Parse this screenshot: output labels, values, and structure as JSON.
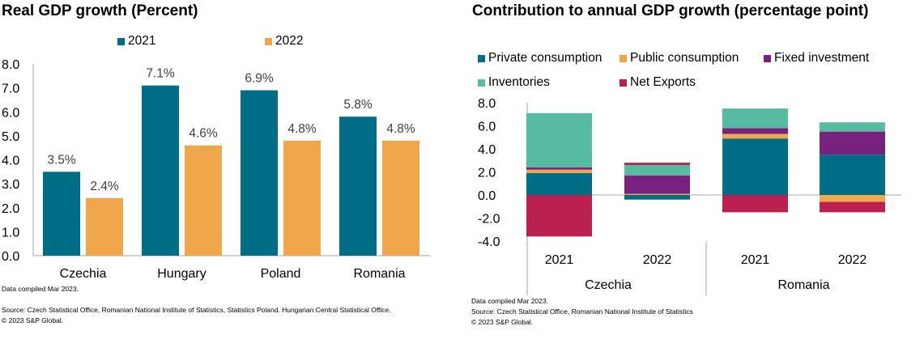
{
  "chart_data": [
    {
      "type": "bar",
      "title": "Real GDP growth (Percent)",
      "categories": [
        "Czechia",
        "Hungary",
        "Poland",
        "Romania"
      ],
      "series": [
        {
          "name": "2021",
          "color": "#006D87",
          "values": [
            3.5,
            7.1,
            6.9,
            5.8
          ],
          "labels": [
            "3.5%",
            "7.1%",
            "6.9%",
            "5.8%"
          ]
        },
        {
          "name": "2022",
          "color": "#F0A64A",
          "values": [
            2.4,
            4.6,
            4.8,
            4.8
          ],
          "labels": [
            "2.4%",
            "4.6%",
            "4.8%",
            "4.8%"
          ]
        }
      ],
      "ylim": [
        0,
        8
      ],
      "yticks": [
        "0.0",
        "1.0",
        "2.0",
        "3.0",
        "4.0",
        "5.0",
        "6.0",
        "7.0",
        "8.0"
      ],
      "xlabel": "",
      "ylabel": "",
      "grid": false,
      "legend": "top-center",
      "footnotes": [
        "Data compiled Mar 2023.",
        "Source: Czech Statistical Office, Romanian National Institute of Statistics, Statistics Poland. Hungarian Central Statistical Office.",
        "© 2023 S&P Global."
      ]
    },
    {
      "type": "bar",
      "stacked": true,
      "title": "Contribution to annual GDP growth (percentage point)",
      "groups": [
        "Czechia",
        "Romania"
      ],
      "categories": [
        "2021",
        "2022",
        "2021",
        "2022"
      ],
      "category_groups": [
        "Czechia",
        "Czechia",
        "Romania",
        "Romania"
      ],
      "series": [
        {
          "name": "Private consumption",
          "color": "#006D87",
          "values": [
            1.9,
            -0.4,
            4.9,
            3.5
          ]
        },
        {
          "name": "Public consumption",
          "color": "#F0A64A",
          "values": [
            0.3,
            0.1,
            0.4,
            -0.6
          ]
        },
        {
          "name": "Fixed investment",
          "color": "#78217E",
          "values": [
            0.2,
            1.6,
            0.5,
            2.0
          ]
        },
        {
          "name": "Inventories",
          "color": "#56BBA1",
          "values": [
            4.7,
            0.9,
            1.7,
            0.8
          ]
        },
        {
          "name": "Net Exports",
          "color": "#BA2050",
          "values": [
            -3.6,
            0.2,
            -1.5,
            -0.9
          ]
        }
      ],
      "ylim": [
        -4,
        8
      ],
      "yticks": [
        "-4.0",
        "-2.0",
        "0.0",
        "2.0",
        "4.0",
        "6.0",
        "8.0"
      ],
      "xlabel": "",
      "ylabel": "",
      "grid": false,
      "legend": "top-left",
      "footnotes": [
        "Data compiled Mar 2023.",
        "Source: Czech Statistical Office, Romanian National Institute of Statistics",
        "© 2023 S&P Global."
      ]
    }
  ]
}
